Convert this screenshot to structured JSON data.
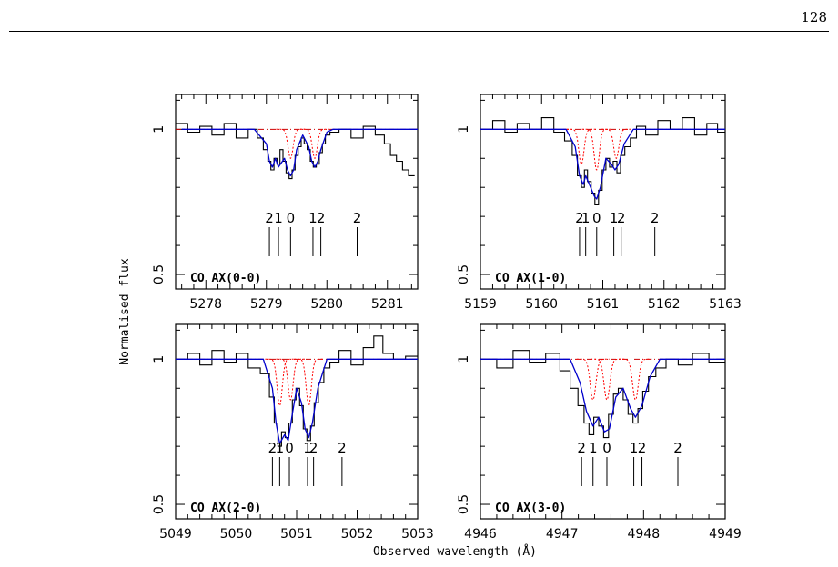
{
  "page": {
    "number": "128"
  },
  "chart_data": [
    {
      "type": "line",
      "panel_label": "CO AX(0-0)",
      "xlim": [
        5277.5,
        5281.5
      ],
      "ylim": [
        0.45,
        1.12
      ],
      "xticks": [
        5278,
        5279,
        5280,
        5281
      ],
      "yticks": [
        1,
        0.5
      ],
      "ytick_labels": [
        "1",
        "0.5"
      ],
      "component_labels": [
        "2",
        "1",
        "0",
        "1",
        "2",
        "2"
      ],
      "component_positions": [
        5279.05,
        5279.2,
        5279.4,
        5279.77,
        5279.9,
        5280.5
      ],
      "series": [
        {
          "type": "spectrum",
          "color": "#000000",
          "x": [
            5277.6,
            5277.8,
            5278.0,
            5278.2,
            5278.4,
            5278.6,
            5278.8,
            5278.9,
            5279.0,
            5279.05,
            5279.1,
            5279.15,
            5279.2,
            5279.25,
            5279.3,
            5279.35,
            5279.4,
            5279.45,
            5279.5,
            5279.55,
            5279.6,
            5279.65,
            5279.7,
            5279.75,
            5279.8,
            5279.85,
            5279.9,
            5279.95,
            5280.0,
            5280.1,
            5280.3,
            5280.5,
            5280.7,
            5280.9,
            5281.0,
            5281.1,
            5281.2,
            5281.3,
            5281.4
          ],
          "y": [
            1.02,
            0.99,
            1.01,
            0.98,
            1.02,
            0.97,
            1.0,
            0.97,
            0.93,
            0.89,
            0.86,
            0.9,
            0.88,
            0.93,
            0.89,
            0.85,
            0.83,
            0.86,
            0.91,
            0.94,
            0.97,
            0.95,
            0.93,
            0.89,
            0.87,
            0.88,
            0.92,
            0.95,
            0.98,
            0.99,
            1.0,
            0.97,
            1.01,
            0.98,
            0.95,
            0.91,
            0.89,
            0.86,
            0.84
          ]
        },
        {
          "type": "model",
          "color": "#0000cc",
          "x": [
            5277.6,
            5278.8,
            5279.0,
            5279.05,
            5279.1,
            5279.15,
            5279.2,
            5279.3,
            5279.35,
            5279.4,
            5279.45,
            5279.5,
            5279.6,
            5279.7,
            5279.75,
            5279.8,
            5279.85,
            5279.9,
            5280.0,
            5280.1,
            5281.5
          ],
          "y": [
            1.0,
            1.0,
            0.95,
            0.89,
            0.87,
            0.9,
            0.87,
            0.9,
            0.86,
            0.84,
            0.86,
            0.93,
            0.98,
            0.94,
            0.89,
            0.87,
            0.89,
            0.93,
            0.99,
            1.0,
            1.0
          ]
        },
        {
          "type": "component",
          "color": "#ff0000",
          "center": 5279.4,
          "depth": 0.1,
          "width": 0.06
        },
        {
          "type": "component",
          "color": "#ff0000",
          "center": 5279.8,
          "depth": 0.1,
          "width": 0.06
        }
      ]
    },
    {
      "type": "line",
      "panel_label": "CO AX(1-0)",
      "xlim": [
        5159.0,
        5163.0
      ],
      "ylim": [
        0.45,
        1.12
      ],
      "xticks": [
        5159,
        5160,
        5161,
        5162,
        5163
      ],
      "yticks": [
        1,
        0.5
      ],
      "ytick_labels": [
        "1",
        "0.5"
      ],
      "component_labels": [
        "2",
        "1",
        "0",
        "1",
        "2",
        "2"
      ],
      "component_positions": [
        5160.62,
        5160.72,
        5160.9,
        5161.18,
        5161.3,
        5161.85
      ],
      "series": [
        {
          "type": "spectrum",
          "color": "#000000",
          "x": [
            5159.1,
            5159.3,
            5159.5,
            5159.7,
            5159.9,
            5160.1,
            5160.3,
            5160.45,
            5160.55,
            5160.62,
            5160.68,
            5160.72,
            5160.78,
            5160.84,
            5160.9,
            5160.96,
            5161.02,
            5161.08,
            5161.14,
            5161.2,
            5161.26,
            5161.32,
            5161.4,
            5161.5,
            5161.6,
            5161.8,
            5162.0,
            5162.2,
            5162.4,
            5162.6,
            5162.8,
            5162.95
          ],
          "y": [
            1.0,
            1.03,
            0.99,
            1.02,
            1.0,
            1.04,
            0.99,
            0.96,
            0.91,
            0.84,
            0.8,
            0.86,
            0.82,
            0.78,
            0.74,
            0.79,
            0.86,
            0.9,
            0.87,
            0.89,
            0.85,
            0.91,
            0.94,
            0.97,
            1.01,
            0.98,
            1.03,
            1.0,
            1.04,
            0.98,
            1.02,
            0.99
          ]
        },
        {
          "type": "model",
          "color": "#0000cc",
          "x": [
            5159.0,
            5160.4,
            5160.55,
            5160.62,
            5160.68,
            5160.72,
            5160.8,
            5160.86,
            5160.9,
            5160.96,
            5161.05,
            5161.14,
            5161.2,
            5161.26,
            5161.35,
            5161.5,
            5163.0
          ],
          "y": [
            1.0,
            1.0,
            0.94,
            0.84,
            0.81,
            0.84,
            0.8,
            0.77,
            0.76,
            0.8,
            0.9,
            0.88,
            0.86,
            0.88,
            0.95,
            1.0,
            1.0
          ]
        },
        {
          "type": "component",
          "color": "#ff0000",
          "center": 5160.65,
          "depth": 0.12,
          "width": 0.06
        },
        {
          "type": "component",
          "color": "#ff0000",
          "center": 5160.9,
          "depth": 0.14,
          "width": 0.06
        },
        {
          "type": "component",
          "color": "#ff0000",
          "center": 5161.22,
          "depth": 0.1,
          "width": 0.06
        }
      ]
    },
    {
      "type": "line",
      "panel_label": "CO AX(2-0)",
      "xlim": [
        5049.0,
        5053.0
      ],
      "ylim": [
        0.45,
        1.12
      ],
      "xticks": [
        5049,
        5050,
        5051,
        5052,
        5053
      ],
      "yticks": [
        1,
        0.5
      ],
      "ytick_labels": [
        "1",
        "0.5"
      ],
      "component_labels": [
        "2",
        "1",
        "0",
        "1",
        "2",
        "2"
      ],
      "component_positions": [
        5050.6,
        5050.72,
        5050.88,
        5051.18,
        5051.28,
        5051.75
      ],
      "series": [
        {
          "type": "spectrum",
          "color": "#000000",
          "x": [
            5049.1,
            5049.3,
            5049.5,
            5049.7,
            5049.9,
            5050.1,
            5050.3,
            5050.5,
            5050.6,
            5050.66,
            5050.72,
            5050.78,
            5050.84,
            5050.9,
            5050.96,
            5051.02,
            5051.08,
            5051.14,
            5051.2,
            5051.26,
            5051.32,
            5051.4,
            5051.5,
            5051.6,
            5051.8,
            5052.0,
            5052.2,
            5052.35,
            5052.5,
            5052.7,
            5052.9
          ],
          "y": [
            1.0,
            1.02,
            0.98,
            1.03,
            0.99,
            1.02,
            0.97,
            0.95,
            0.87,
            0.78,
            0.7,
            0.75,
            0.73,
            0.78,
            0.86,
            0.9,
            0.84,
            0.76,
            0.72,
            0.77,
            0.85,
            0.92,
            0.97,
            0.99,
            1.03,
            0.98,
            1.04,
            1.08,
            1.02,
            1.0,
            1.01
          ]
        },
        {
          "type": "model",
          "color": "#0000cc",
          "x": [
            5049.0,
            5050.45,
            5050.6,
            5050.66,
            5050.72,
            5050.8,
            5050.86,
            5050.92,
            5051.0,
            5051.08,
            5051.14,
            5051.2,
            5051.26,
            5051.35,
            5051.5,
            5053.0
          ],
          "y": [
            1.0,
            1.0,
            0.9,
            0.78,
            0.71,
            0.74,
            0.72,
            0.8,
            0.9,
            0.85,
            0.76,
            0.73,
            0.78,
            0.9,
            1.0,
            1.0
          ]
        },
        {
          "type": "component",
          "color": "#ff0000",
          "center": 5050.72,
          "depth": 0.16,
          "width": 0.06
        },
        {
          "type": "component",
          "color": "#ff0000",
          "center": 5050.9,
          "depth": 0.14,
          "width": 0.06
        },
        {
          "type": "component",
          "color": "#ff0000",
          "center": 5051.2,
          "depth": 0.16,
          "width": 0.06
        }
      ]
    },
    {
      "type": "line",
      "panel_label": "CO AX(3-0)",
      "xlim": [
        4946.0,
        4949.0
      ],
      "ylim": [
        0.45,
        1.12
      ],
      "xticks": [
        4946,
        4947,
        4948,
        4949
      ],
      "yticks": [
        1,
        0.5
      ],
      "ytick_labels": [
        "1",
        "0.5"
      ],
      "component_labels": [
        "2",
        "1",
        "0",
        "1",
        "2",
        "2"
      ],
      "component_positions": [
        4947.24,
        4947.38,
        4947.55,
        4947.88,
        4947.98,
        4948.42
      ],
      "series": [
        {
          "type": "spectrum",
          "color": "#000000",
          "x": [
            4946.1,
            4946.3,
            4946.5,
            4946.7,
            4946.9,
            4947.05,
            4947.15,
            4947.24,
            4947.3,
            4947.36,
            4947.42,
            4947.48,
            4947.54,
            4947.6,
            4947.66,
            4947.72,
            4947.78,
            4947.84,
            4947.9,
            4947.96,
            4948.02,
            4948.1,
            4948.2,
            4948.35,
            4948.5,
            4948.7,
            4948.9
          ],
          "y": [
            1.0,
            0.97,
            1.03,
            0.99,
            1.02,
            0.96,
            0.9,
            0.84,
            0.78,
            0.74,
            0.8,
            0.77,
            0.73,
            0.81,
            0.88,
            0.9,
            0.86,
            0.81,
            0.78,
            0.83,
            0.89,
            0.94,
            0.97,
            1.0,
            0.98,
            1.02,
            0.99
          ]
        },
        {
          "type": "model",
          "color": "#0000cc",
          "x": [
            4946.0,
            4947.1,
            4947.22,
            4947.3,
            4947.38,
            4947.45,
            4947.52,
            4947.58,
            4947.66,
            4947.75,
            4947.84,
            4947.9,
            4947.98,
            4948.08,
            4948.2,
            4949.0
          ],
          "y": [
            1.0,
            1.0,
            0.92,
            0.82,
            0.77,
            0.8,
            0.75,
            0.76,
            0.87,
            0.9,
            0.83,
            0.8,
            0.84,
            0.94,
            1.0,
            1.0
          ]
        },
        {
          "type": "component",
          "color": "#ff0000",
          "center": 4947.38,
          "depth": 0.14,
          "width": 0.05
        },
        {
          "type": "component",
          "color": "#ff0000",
          "center": 4947.55,
          "depth": 0.14,
          "width": 0.05
        },
        {
          "type": "component",
          "color": "#ff0000",
          "center": 4947.9,
          "depth": 0.14,
          "width": 0.05
        }
      ]
    }
  ],
  "axes": {
    "ylabel": "Normalised flux",
    "xlabel": "Observed wavelength (Å)"
  }
}
